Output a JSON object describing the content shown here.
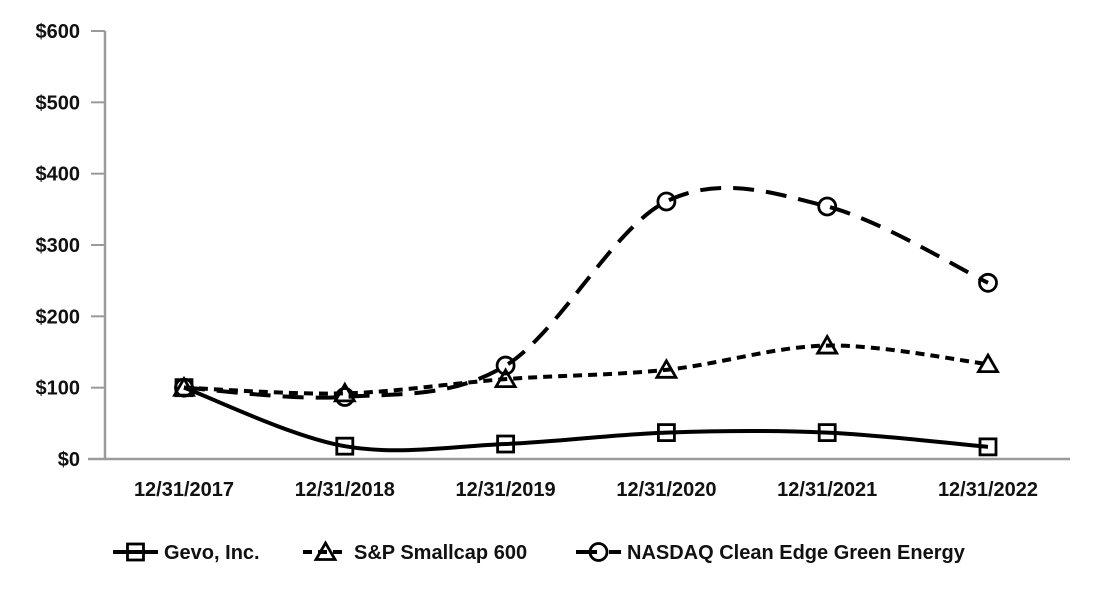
{
  "chart_data": {
    "type": "line",
    "title": "",
    "xlabel": "",
    "ylabel": "",
    "x": [
      "12/31/2017",
      "12/31/2018",
      "12/31/2019",
      "12/31/2020",
      "12/31/2021",
      "12/31/2022"
    ],
    "series": [
      {
        "name": "Gevo, Inc.",
        "marker": "square",
        "line": "solid",
        "color": "#000000",
        "values": [
          100,
          18,
          21,
          37,
          37,
          17
        ]
      },
      {
        "name": "S&P Smallcap 600",
        "marker": "triangle",
        "line": "short-dash",
        "color": "#000000",
        "values": [
          100,
          92,
          112,
          125,
          159,
          133
        ]
      },
      {
        "name": "NASDAQ Clean Edge Green Energy",
        "marker": "circle",
        "line": "long-dash",
        "color": "#000000",
        "values": [
          100,
          87,
          131,
          361,
          354,
          247
        ]
      }
    ],
    "ylim": [
      0,
      600
    ],
    "yticks": [
      {
        "label": "$0",
        "value": 0
      },
      {
        "label": "$100",
        "value": 100
      },
      {
        "label": "$200",
        "value": 200
      },
      {
        "label": "$300",
        "value": 300
      },
      {
        "label": "$400",
        "value": 400
      },
      {
        "label": "$500",
        "value": 500
      },
      {
        "label": "$600",
        "value": 600
      }
    ],
    "grid": false,
    "legend_position": "bottom",
    "axis_color": "#9a9a9a",
    "text_color": "#111111",
    "line_smoothing": true
  }
}
